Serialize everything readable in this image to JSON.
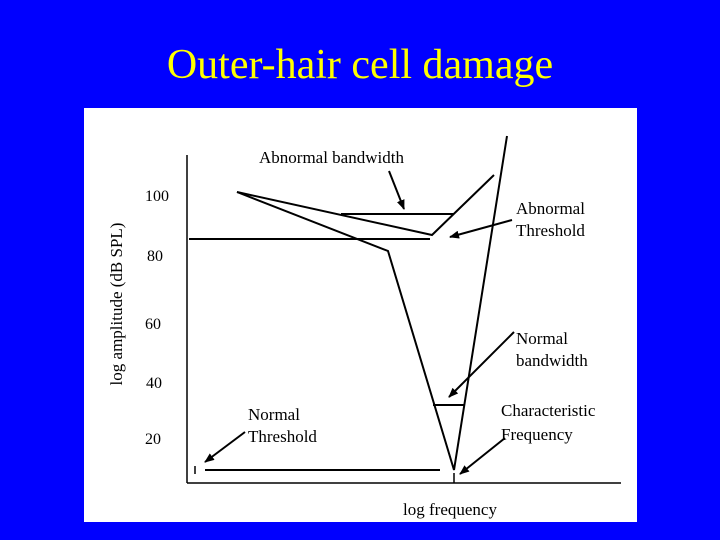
{
  "slide": {
    "title": "Outer-hair cell damage",
    "background_color": "#0000ff",
    "title_color": "#ffff00",
    "panel_color": "#ffffff"
  },
  "diagram": {
    "y_axis_label": "log amplitude (dB SPL)",
    "x_axis_label": "log frequency",
    "y_ticks": [
      "100",
      "80",
      "60",
      "40",
      "20"
    ],
    "annotations": {
      "abnormal_bandwidth": "Abnormal bandwidth",
      "abnormal_threshold": [
        "Abnormal",
        "Threshold"
      ],
      "normal_bandwidth": [
        "Normal",
        "bandwidth"
      ],
      "normal_threshold": [
        "Normal",
        "Threshold"
      ],
      "characteristic_frequency": [
        "Characteristic",
        "Frequency"
      ]
    },
    "curves": [
      "normal-tuning-curve",
      "abnormal-tuning-curve"
    ]
  }
}
